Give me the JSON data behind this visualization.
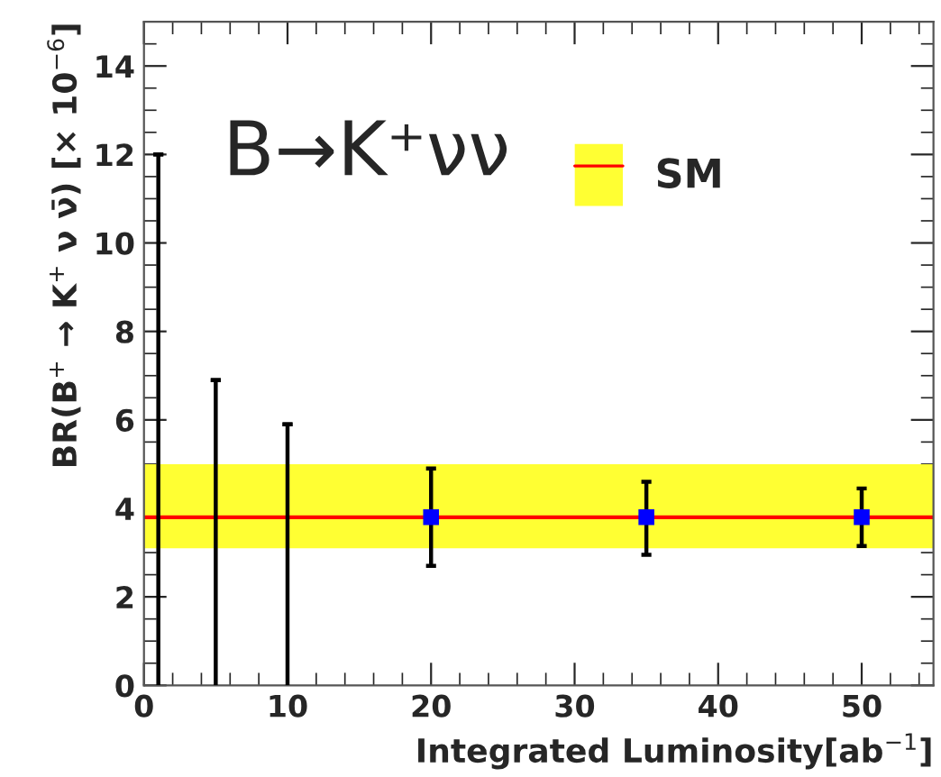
{
  "chart_data": {
    "type": "scatter",
    "xlabel": "Integrated Luminosity[ab$^{−1}$]",
    "ylabel": "BR(B$^{+}$ → K$^{+}$ ν ν̄) [× 10$^{−6}$]",
    "annotations": [
      "B→K⁺νν"
    ],
    "xlim": [
      0,
      55
    ],
    "xticks": [
      0,
      10,
      20,
      30,
      40,
      50
    ],
    "ylim": [
      0,
      15
    ],
    "yticks": [
      0,
      2,
      4,
      6,
      8,
      10,
      12,
      14
    ],
    "series": [
      {
        "type": "bar",
        "color": "#000000",
        "x": [
          1,
          5,
          10
        ],
        "values": [
          12,
          6.9,
          5.9
        ]
      },
      {
        "marker": "square",
        "color": "#0000ff",
        "x": [
          20,
          35,
          50
        ],
        "values": [
          3.8,
          3.8,
          3.8
        ],
        "errors": [
          [
            2.7,
            4.9
          ],
          [
            2.95,
            4.6
          ],
          [
            3.15,
            4.45
          ]
        ]
      }
    ],
    "bands": [
      {
        "axis": "y",
        "from": 3.1,
        "to": 5.0,
        "label": "SM",
        "color": "#ffff33"
      }
    ],
    "ref_lines": [
      {
        "axis": "y",
        "value": 3.8,
        "color": "#ff0000",
        "line_style": "solid"
      }
    ],
    "legend": "top right",
    "grid": false
  }
}
